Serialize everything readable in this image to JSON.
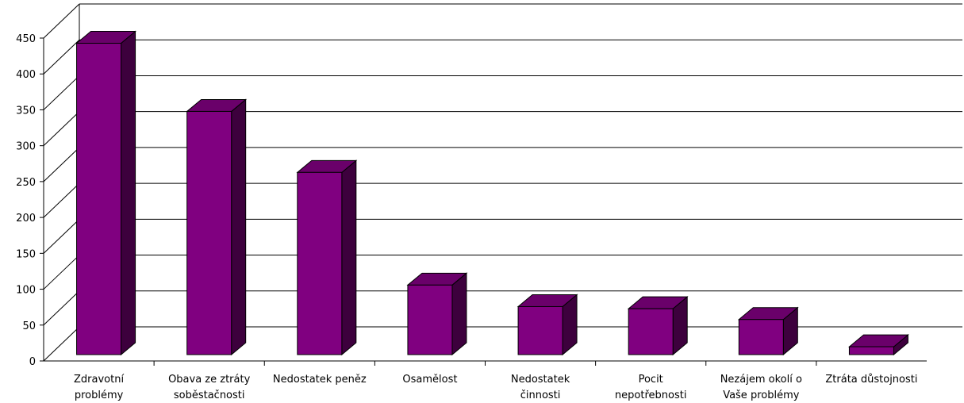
{
  "chart_data": {
    "type": "bar",
    "categories": [
      [
        "Zdravotní",
        "problémy"
      ],
      [
        "Obava ze ztráty",
        "soběstačnosti"
      ],
      [
        "Nedostatek peněz"
      ],
      [
        "Osamělost"
      ],
      [
        "Nedostatek",
        "činnosti"
      ],
      [
        "Pocit",
        "nepotřebnosti"
      ],
      [
        "Nezájem okolí o",
        "Vaše problémy"
      ],
      [
        "Ztráta důstojnosti"
      ]
    ],
    "values": [
      445,
      350,
      265,
      108,
      78,
      75,
      60,
      22
    ],
    "yticks": [
      "0",
      "50",
      "100",
      "150",
      "200",
      "250",
      "300",
      "350",
      "400",
      "450"
    ],
    "ylim": [
      0,
      450
    ],
    "grid": true,
    "bar_color": "#800080",
    "bar_top_color": "#6a006a",
    "bar_side_color": "#3d003d",
    "style": "3d-column"
  }
}
